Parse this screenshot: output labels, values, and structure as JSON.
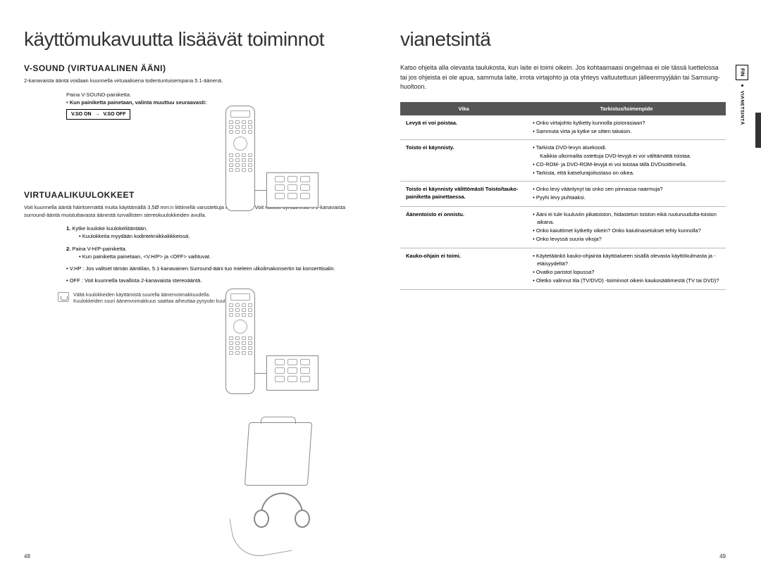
{
  "left": {
    "title": "käyttömukavuutta lisäävät toiminnot",
    "sec1": {
      "heading": "V-SOUND (VIRTUAALINEN ÄÄNI)",
      "lead": "2-kanavaista ääntä voidaan kuunnella virtuaalisena todentuntuisempana 5.1-äänenä.",
      "step1": "Paina V-SOUND-painiketta.",
      "step1b": "• Kun painiketta painetaan, valinta muuttuu seuraavasti:",
      "toggle_on": "V.SO ON",
      "toggle_off": "V.SO OFF"
    },
    "sec2": {
      "heading": "VIRTUAALIKUULOKKEET",
      "lead": "Voit kuunnella ääntä häiritsemättä muita käyttämällä 3,5Ø mm:n liittimellä varustettuja kuulokkeita. Voit nauttia dynaamista 5.1-kanavaista surround-ääntä muistuttavasta äänestä turvallisten stereokuulokkeiden avulla.",
      "items": [
        {
          "num": "1.",
          "text": "Kytke kuuloke kuulokeliitäntään.",
          "sub": "• Kuulokkeita myydään kodintekniikkaliikkeissä."
        },
        {
          "num": "2.",
          "text": "Paina V-H/P-painiketta.",
          "sub": "• Kun painiketta painetaan, <V.H/P> ja <OFF> vaihtuvat."
        }
      ],
      "modes": [
        "• V.HP : Jos valitset tämän äänitilan, 5.1-kanavainen Surround-ääni tuo mieleen ulkoilmakonsertin tai konserttisalin.",
        "• OFF : Voit kuunnella tavallista 2-kanavaista stereoääntä."
      ],
      "note": "Vältä kuulokkeiden käyttämistä suurella äänenvoimakkuudella.\nKuulokkeiden suuri äänenvoimakkuus saattaa aiheuttaa pysyvän kuulovaurion."
    },
    "page_num": "48"
  },
  "right": {
    "title": "vianetsintä",
    "intro": "Katso ohjeita alla olevasta taulukosta, kun laite ei toimi oikein. Jos kohtaamaasi ongelmaa ei ole tässä luettelossa tai jos ohjeista ei ole apua, sammuta laite, irrota virtajohto ja ota yhteys valtuutettuun jälleenmyyjään tai Samsung-huoltoon.",
    "table": {
      "col1": "Vika",
      "col2": "Tarkistus/toimenpide",
      "rows": [
        {
          "fault": "Levyä ei voi poistaa.",
          "fix": [
            "• Onko virtajohto kytketty kunnolla pistorasiaan?",
            "• Sammuta virta ja kytke se sitten takaisin."
          ]
        },
        {
          "fault": "Toisto ei käynnisty.",
          "fix": [
            "• Tarkista DVD-levyn aluekoodi.",
            "  Kaikkia ulkomailta ostettuja DVD-levyjä ei voi välttämättä toistaa.",
            "• CD-ROM- ja DVD-ROM-levyjä ei voi toistaa tällä DVDsoittimella.",
            "• Tarkista, että katselurajoitustaso on oikea."
          ]
        },
        {
          "fault": "Toisto ei käynnisty välittömästi Toisto/tauko-painiketta painettaessa.",
          "fix": [
            "• Onko levy vääntynyt tai onko sen pinnassa naarmuja?",
            "• Pyyhi levy puhtaaksi."
          ]
        },
        {
          "fault": "Äänentoisto ei onnistu.",
          "fix": [
            "• Ääni ei tule kuuluviin pikatoiston, hidastetun toiston eikä ruuturuudulta-toiston aikana.",
            "• Onko kaiuttimet kytketty oikein? Onko kaiutinasetukset tehty kunnolla?",
            "• Onko levyssä suuria vikoja?"
          ]
        },
        {
          "fault": "Kauko-ohjain ei toimi.",
          "fix": [
            "• Käytetäänkö kauko-ohjainta käyttöalueen sisällä olevasta käyttökulmasta ja -etäisyydeltä?",
            "• Ovatko paristot lopussa?",
            "• Oletko valinnut tila (TV/DVD) -toiminnot oikein kaukosäätimestä (TV tai DVD)?"
          ]
        }
      ]
    },
    "tab_lang": "FIN",
    "tab_section": "VIANETSINTÄ",
    "page_num": "49"
  }
}
